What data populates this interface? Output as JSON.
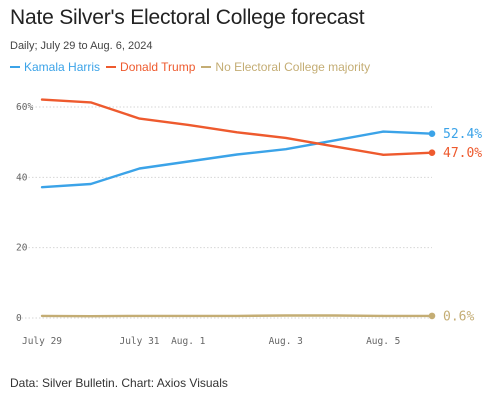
{
  "chart_data": {
    "type": "line",
    "title": "Nate Silver's Electoral College forecast",
    "subtitle": "Daily; July 29 to Aug. 6, 2024",
    "source": "Data: Silver Bulletin. Chart: Axios Visuals",
    "x_dates": [
      "2024-07-29",
      "2024-07-30",
      "2024-07-31",
      "2024-08-01",
      "2024-08-02",
      "2024-08-03",
      "2024-08-04",
      "2024-08-05",
      "2024-08-06"
    ],
    "x_ticks": [
      {
        "date": "2024-07-29",
        "label": "July 29"
      },
      {
        "date": "2024-07-31",
        "label": "July 31"
      },
      {
        "date": "2024-08-01",
        "label": "Aug. 1"
      },
      {
        "date": "2024-08-03",
        "label": "Aug. 3"
      },
      {
        "date": "2024-08-05",
        "label": "Aug. 5"
      }
    ],
    "y_ticks": [
      {
        "value": 0,
        "label": "0"
      },
      {
        "value": 20,
        "label": "20"
      },
      {
        "value": 40,
        "label": "40"
      },
      {
        "value": 60,
        "label": "60%"
      }
    ],
    "ylim": [
      0,
      60
    ],
    "grid": true,
    "legend": "top-left",
    "series": [
      {
        "name": "Kamala Harris",
        "color": "#3ba3e8",
        "values": [
          37.2,
          38.1,
          42.5,
          44.5,
          46.5,
          48.0,
          50.5,
          53.0,
          52.4
        ],
        "end_label": "52.4%"
      },
      {
        "name": "Donald Trump",
        "color": "#ee5a2e",
        "values": [
          62.1,
          61.3,
          56.7,
          54.9,
          52.8,
          51.2,
          48.8,
          46.4,
          47.0
        ],
        "end_label": "47.0%"
      },
      {
        "name": "No Electoral College majority",
        "color": "#c4ad74",
        "values": [
          0.6,
          0.5,
          0.6,
          0.6,
          0.6,
          0.7,
          0.7,
          0.6,
          0.6
        ],
        "end_label": "0.6%"
      }
    ]
  }
}
